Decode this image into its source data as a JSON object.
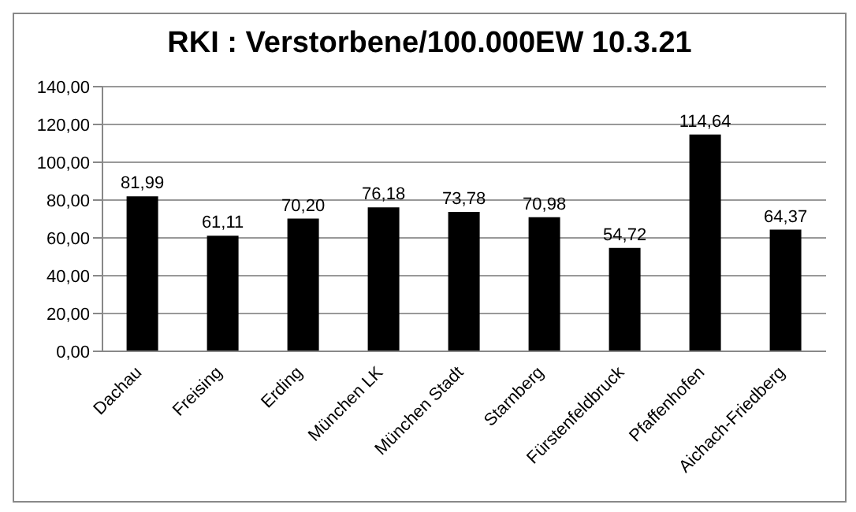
{
  "chart_data": {
    "type": "bar",
    "title": "RKI : Verstorbene/100.000EW 10.3.21",
    "categories": [
      "Dachau",
      "Freising",
      "Erding",
      "München LK",
      "München Stadt",
      "Starnberg",
      "Fürstenfeldbruck",
      "Pfaffenhofen",
      "Aichach-Friedberg"
    ],
    "values": [
      81.99,
      61.11,
      70.2,
      76.18,
      73.78,
      70.98,
      54.72,
      114.64,
      64.37
    ],
    "value_labels": [
      "81,99",
      "61,11",
      "70,20",
      "76,18",
      "73,78",
      "70,98",
      "54,72",
      "114,64",
      "64,37"
    ],
    "color": "#000000",
    "ylim": [
      0,
      140
    ],
    "yticks": [
      {
        "value": 0,
        "label": "0,00"
      },
      {
        "value": 20,
        "label": "20,00"
      },
      {
        "value": 40,
        "label": "40,00"
      },
      {
        "value": 60,
        "label": "60,00"
      },
      {
        "value": 80,
        "label": "80,00"
      },
      {
        "value": 100,
        "label": "100,00"
      },
      {
        "value": 120,
        "label": "120,00"
      },
      {
        "value": 140,
        "label": "140,00"
      }
    ],
    "grid": "y",
    "legend": false
  }
}
